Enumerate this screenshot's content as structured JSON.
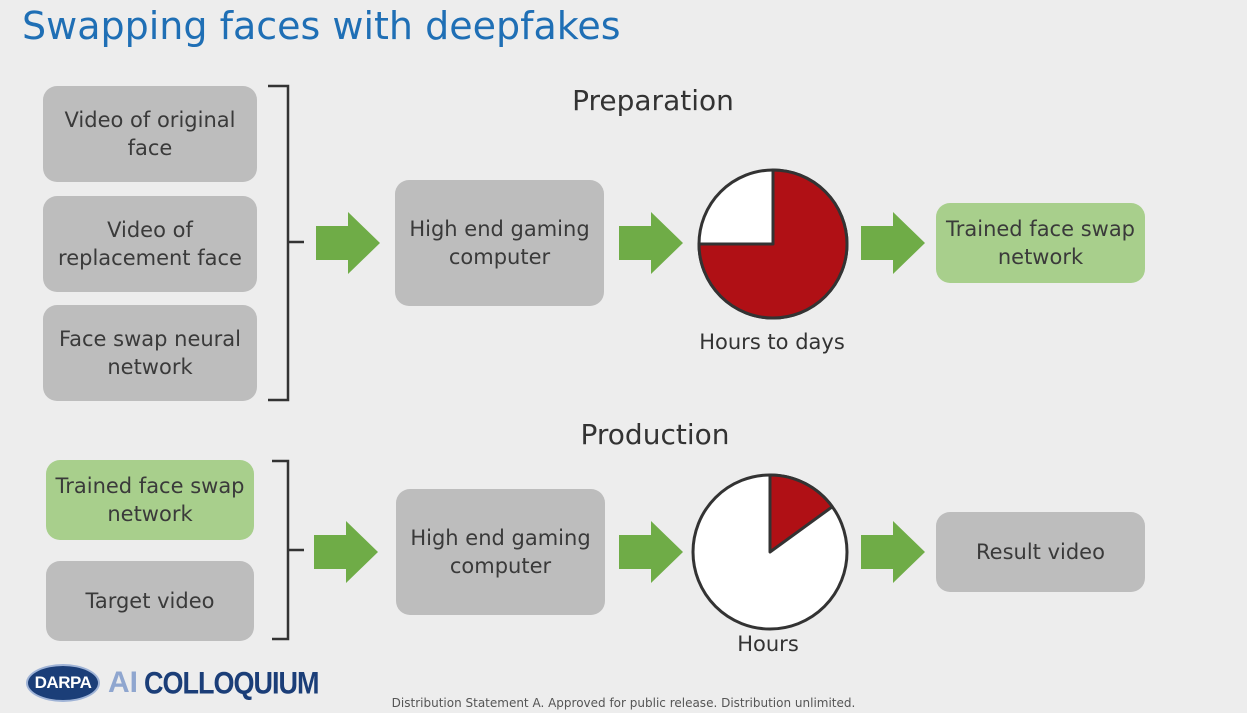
{
  "title": "Swapping faces with deepfakes",
  "preparation": {
    "heading": "Preparation",
    "inputs": [
      "Video of original face",
      "Video of replacement face",
      "Face swap neural network"
    ],
    "computer": "High end gaming computer",
    "time_label": "Hours to days",
    "time_fraction": 0.75,
    "output": "Trained face swap network"
  },
  "production": {
    "heading": "Production",
    "inputs": [
      "Trained face swap network",
      "Target video"
    ],
    "computer": "High end gaming computer",
    "time_label": "Hours",
    "time_fraction": 0.15,
    "output": "Result video"
  },
  "logo": {
    "darpa": "DARPA",
    "ai": "AI",
    "colloquium": "COLLOQUIUM"
  },
  "footer": "Distribution Statement A. Approved for public release. Distribution unlimited.",
  "colors": {
    "title": "#1f6fb5",
    "grey_box": "#bdbdbd",
    "green_box": "#a8cf8c",
    "arrow": "#6fac47",
    "pie_fill": "#b01015"
  }
}
